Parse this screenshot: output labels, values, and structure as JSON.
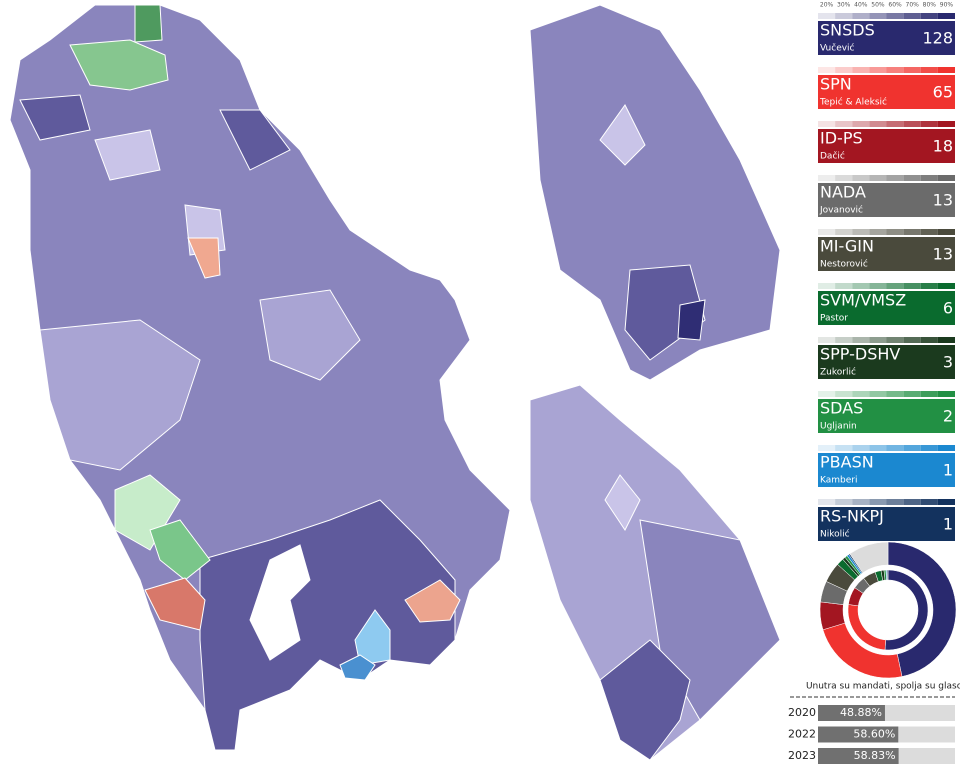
{
  "legend_scale": {
    "ticks": [
      {
        "value": 20,
        "label": "20%"
      },
      {
        "value": 30,
        "label": "30%"
      },
      {
        "value": 40,
        "label": "40%"
      },
      {
        "value": 50,
        "label": "50%"
      },
      {
        "value": 60,
        "label": "60%"
      },
      {
        "value": 70,
        "label": "70%"
      },
      {
        "value": 80,
        "label": "80%"
      },
      {
        "value": 90,
        "label": "90%"
      }
    ],
    "range": [
      20,
      100
    ]
  },
  "parties": [
    {
      "name": "SNSDS",
      "leader": "Vučević",
      "seats": 128,
      "votes": 46.7,
      "color": "#29296e"
    },
    {
      "name": "SPN",
      "leader": "Tepić & Aleksić",
      "seats": 65,
      "votes": 23.6,
      "color": "#f0332f"
    },
    {
      "name": "ID-PS",
      "leader": "Dačić",
      "seats": 18,
      "votes": 6.6,
      "color": "#a31621"
    },
    {
      "name": "NADA",
      "leader": "Jovanović",
      "seats": 13,
      "votes": 5.0,
      "color": "#6b6b6b"
    },
    {
      "name": "MI-GIN",
      "leader": "Nestorović",
      "seats": 13,
      "votes": 4.8,
      "color": "#4a4a3c"
    },
    {
      "name": "SVM/VMSZ",
      "leader": "Pastor",
      "seats": 6,
      "votes": 1.7,
      "color": "#0a6b2e"
    },
    {
      "name": "SPP-DSHV",
      "leader": "Zukorlić",
      "seats": 3,
      "votes": 0.7,
      "color": "#1b3a1e"
    },
    {
      "name": "SDAS",
      "leader": "Ugljanin",
      "seats": 2,
      "votes": 0.6,
      "color": "#229044"
    },
    {
      "name": "PBASN",
      "leader": "Kamberi",
      "seats": 1,
      "votes": 0.5,
      "color": "#1b88d0"
    },
    {
      "name": "RS-NKPJ",
      "leader": "Nikolić",
      "seats": 1,
      "votes": 0.3,
      "color": "#13325e"
    }
  ],
  "donut": {
    "caption": "Unutra su mandati, spolja su glasovi",
    "other_votes": 9.5,
    "other_color": "#dcdcdc"
  },
  "turnout": {
    "years": [
      "2020",
      "2022",
      "2023"
    ],
    "values": [
      48.88,
      58.6,
      58.83
    ],
    "value_labels": [
      "48.88%",
      "58.60%",
      "58.83%"
    ],
    "xlim": [
      0,
      100
    ],
    "color": "#707070",
    "track": "#dcdcdc"
  }
}
